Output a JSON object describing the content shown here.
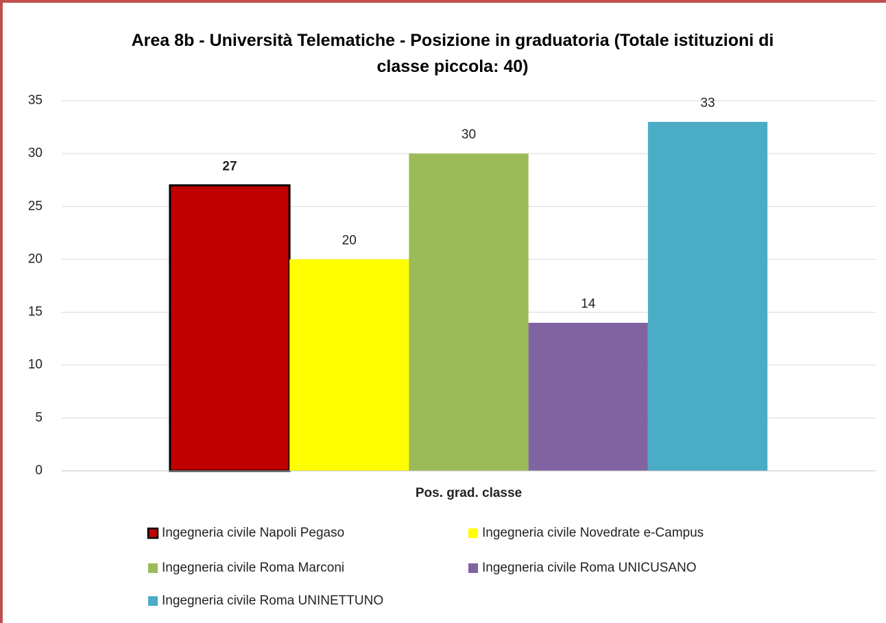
{
  "chart_data": {
    "type": "bar",
    "title": "Area 8b - Università Telematiche - Posizione in graduatoria  (Totale istituzioni di classe piccola: 40)",
    "categories": [
      "Pos. grad. classe"
    ],
    "series": [
      {
        "name": "Ingegneria civile Napoli Pegaso",
        "color": "#c00000",
        "edgecolor": "#000000",
        "values": [
          27
        ]
      },
      {
        "name": "Ingegneria civile Novedrate e-Campus",
        "color": "#ffff00",
        "values": [
          20
        ]
      },
      {
        "name": "Ingegneria civile Roma Marconi",
        "color": "#9bbb59",
        "values": [
          30
        ]
      },
      {
        "name": "Ingegneria civile Roma UNICUSANO",
        "color": "#8064a2",
        "values": [
          14
        ]
      },
      {
        "name": "Ingegneria civile Roma UNINETTUNO",
        "color": "#4bacc6",
        "values": [
          33
        ]
      }
    ],
    "ylim": [
      0,
      35
    ],
    "yticks": [
      0,
      5,
      10,
      15,
      20,
      25,
      30,
      35
    ],
    "grid": true,
    "legend": "bottom"
  }
}
